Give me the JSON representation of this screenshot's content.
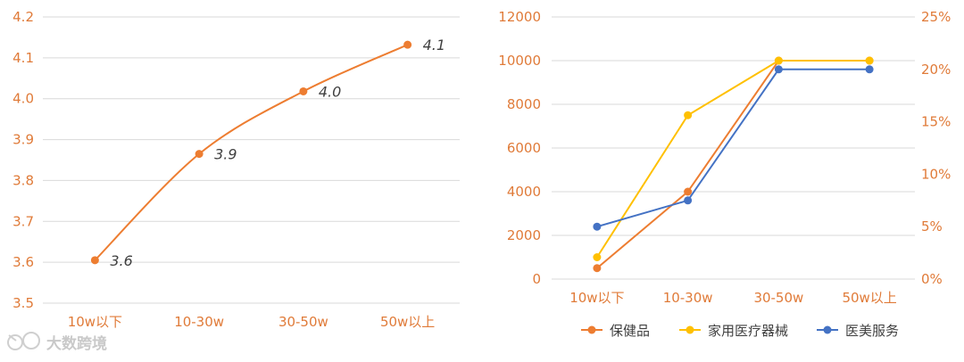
{
  "chart_data": [
    {
      "type": "line",
      "categories": [
        "10w以下",
        "10-30w",
        "30-50w",
        "50w以上"
      ],
      "values": [
        3.605,
        3.865,
        4.018,
        4.132
      ],
      "data_labels": [
        "3.6",
        "3.9",
        "4.0",
        "4.1"
      ],
      "ylim": [
        3.5,
        4.2
      ],
      "yticks": [
        "3.5",
        "3.6",
        "3.7",
        "3.8",
        "3.9",
        "4.0",
        "4.1",
        "4.2"
      ],
      "grid": true,
      "smooth": true,
      "color": "#ED7D31"
    },
    {
      "type": "line",
      "categories": [
        "10w以下",
        "10-30w",
        "30-50w",
        "50w以上"
      ],
      "ylim": [
        0,
        12000
      ],
      "yticks": [
        "0",
        "2000",
        "4000",
        "6000",
        "8000",
        "10000",
        "12000"
      ],
      "y2lim": [
        0,
        0.25
      ],
      "y2ticks": [
        "0%",
        "5%",
        "10%",
        "15%",
        "20%",
        "25%"
      ],
      "grid": true,
      "legend_position": "bottom",
      "series": [
        {
          "name": "保健品",
          "axis": "left",
          "values": [
            500,
            4000,
            10000,
            10000
          ],
          "color": "#ED7D31"
        },
        {
          "name": "家用医疗器械",
          "axis": "left",
          "values": [
            1000,
            7500,
            10000,
            10000
          ],
          "color": "#FFC000"
        },
        {
          "name": "医美服务",
          "axis": "right",
          "values": [
            0.05,
            0.075,
            0.2,
            0.2
          ],
          "color": "#4472C4"
        }
      ]
    }
  ],
  "watermark": {
    "text": "大数跨境"
  }
}
